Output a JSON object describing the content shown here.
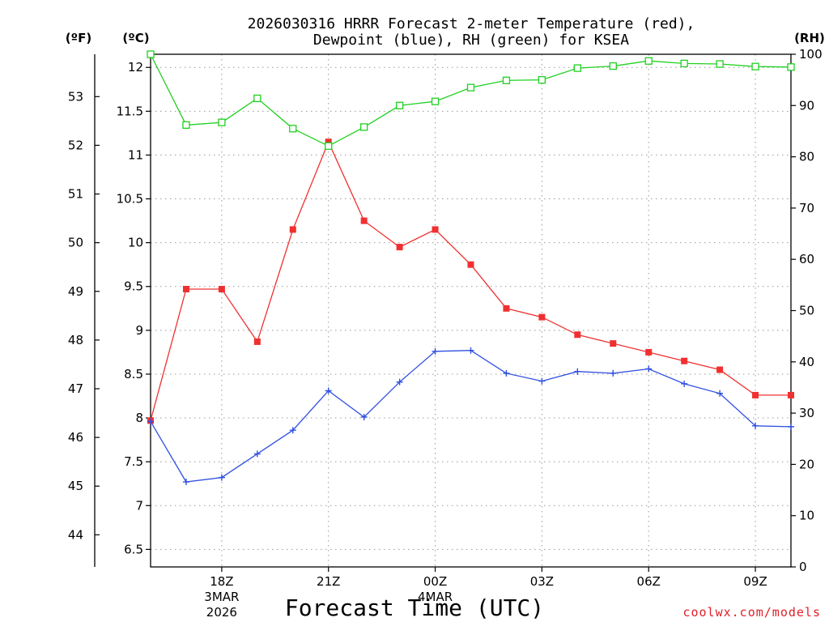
{
  "chart_data": {
    "type": "line",
    "title_line1": "2026030316 HRRR Forecast 2-meter Temperature (red),",
    "title_line2": "Dewpoint (blue), RH (green) for KSEA",
    "xlabel": "Forecast Time (UTC)",
    "watermark": "coolwx.com/models",
    "units": {
      "fahrenheit": "(ºF)",
      "celsius": "(ºC)",
      "rh": "(RH)"
    },
    "x": [
      16,
      17,
      18,
      19,
      20,
      21,
      22,
      23,
      24,
      25,
      26,
      27,
      28,
      29,
      30,
      31,
      32,
      33,
      34
    ],
    "xlim": [
      16,
      34
    ],
    "x_ticks": [
      {
        "x": 18,
        "label": "18Z",
        "sub1": "3MAR",
        "sub2": "2026"
      },
      {
        "x": 21,
        "label": "21Z",
        "sub1": "",
        "sub2": ""
      },
      {
        "x": 24,
        "label": "00Z",
        "sub1": "4MAR",
        "sub2": ""
      },
      {
        "x": 27,
        "label": "03Z",
        "sub1": "",
        "sub2": ""
      },
      {
        "x": 30,
        "label": "06Z",
        "sub1": "",
        "sub2": ""
      },
      {
        "x": 33,
        "label": "09Z",
        "sub1": "",
        "sub2": ""
      }
    ],
    "ylim_celsius": [
      6.3,
      12.15
    ],
    "y_ticks_celsius": [
      "6.5",
      "7",
      "7.5",
      "8",
      "8.5",
      "9",
      "9.5",
      "10",
      "10.5",
      "11",
      "11.5",
      "12"
    ],
    "y_ticks_fahrenheit": [
      "44",
      "45",
      "46",
      "47",
      "48",
      "49",
      "50",
      "51",
      "52",
      "53"
    ],
    "ylim_rh": [
      0,
      100
    ],
    "y_ticks_rh": [
      "0",
      "10",
      "20",
      "30",
      "40",
      "50",
      "60",
      "70",
      "80",
      "90",
      "100"
    ],
    "series": [
      {
        "name": "Temperature",
        "axis": "celsius",
        "color": "#f03030",
        "marker": "filled-square",
        "values": [
          7.97,
          9.47,
          9.47,
          8.87,
          10.15,
          11.15,
          10.25,
          9.95,
          10.15,
          9.75,
          9.25,
          9.15,
          8.95,
          8.85,
          8.75,
          8.65,
          8.55,
          8.26,
          8.26
        ]
      },
      {
        "name": "Dewpoint",
        "axis": "celsius",
        "color": "#3050e0",
        "marker": "plus",
        "values": [
          7.96,
          7.27,
          7.32,
          7.59,
          7.86,
          8.31,
          8.01,
          8.41,
          8.76,
          8.77,
          8.51,
          8.42,
          8.53,
          8.51,
          8.56,
          8.39,
          8.28,
          7.91,
          7.9
        ]
      },
      {
        "name": "RH",
        "axis": "rh",
        "color": "#20d020",
        "marker": "open-square",
        "values": [
          100,
          86.2,
          86.7,
          91.4,
          85.5,
          82.1,
          85.8,
          90.0,
          90.8,
          93.5,
          94.9,
          95.0,
          97.3,
          97.7,
          98.7,
          98.2,
          98.1,
          97.6,
          97.5
        ]
      }
    ]
  }
}
